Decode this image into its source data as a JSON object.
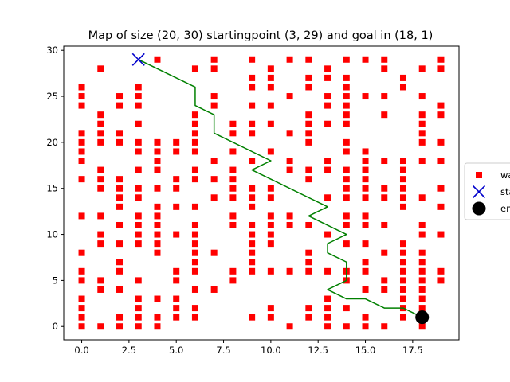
{
  "chart_data": {
    "type": "scatter",
    "title": "Map of size (20, 30) startingpoint (3, 29) and goal in (18, 1)",
    "xlabel": "",
    "ylabel": "",
    "xlim": [
      -0.95,
      19.95
    ],
    "ylim": [
      -1.45,
      30.45
    ],
    "xticks": [
      0,
      2.5,
      5,
      7.5,
      10,
      12.5,
      15,
      17.5
    ],
    "xtick_labels": [
      "0.0",
      "2.5",
      "5.0",
      "7.5",
      "10.0",
      "12.5",
      "15.0",
      "17.5"
    ],
    "yticks": [
      0,
      5,
      10,
      15,
      20,
      25,
      30
    ],
    "ytick_labels": [
      "0",
      "5",
      "10",
      "15",
      "20",
      "25",
      "30"
    ],
    "grid": false,
    "legend_position": "center-right",
    "colors": {
      "wall": "#ff0000",
      "start": "#0000cc",
      "end": "#000000",
      "path": "#008000"
    },
    "series": [
      {
        "name": "wall",
        "marker": "square",
        "points": [
          [
            0,
            0
          ],
          [
            0,
            1
          ],
          [
            0,
            2
          ],
          [
            0,
            3
          ],
          [
            0,
            5
          ],
          [
            0,
            6
          ],
          [
            0,
            8
          ],
          [
            0,
            12
          ],
          [
            0,
            16
          ],
          [
            0,
            18
          ],
          [
            0,
            19
          ],
          [
            0,
            20
          ],
          [
            0,
            21
          ],
          [
            0,
            24
          ],
          [
            0,
            25
          ],
          [
            0,
            26
          ],
          [
            1,
            0
          ],
          [
            1,
            4
          ],
          [
            1,
            5
          ],
          [
            1,
            9
          ],
          [
            1,
            10
          ],
          [
            1,
            12
          ],
          [
            1,
            15
          ],
          [
            1,
            16
          ],
          [
            1,
            17
          ],
          [
            1,
            20
          ],
          [
            1,
            21
          ],
          [
            1,
            22
          ],
          [
            1,
            23
          ],
          [
            1,
            28
          ],
          [
            2,
            0
          ],
          [
            2,
            1
          ],
          [
            2,
            4
          ],
          [
            2,
            6
          ],
          [
            2,
            7
          ],
          [
            2,
            9
          ],
          [
            2,
            11
          ],
          [
            2,
            13
          ],
          [
            2,
            14
          ],
          [
            2,
            15
          ],
          [
            2,
            16
          ],
          [
            2,
            20
          ],
          [
            2,
            21
          ],
          [
            2,
            24
          ],
          [
            2,
            25
          ],
          [
            3,
            0
          ],
          [
            3,
            1
          ],
          [
            3,
            2
          ],
          [
            3,
            3
          ],
          [
            3,
            5
          ],
          [
            3,
            9
          ],
          [
            3,
            10
          ],
          [
            3,
            11
          ],
          [
            3,
            12
          ],
          [
            3,
            14
          ],
          [
            3,
            15
          ],
          [
            3,
            17
          ],
          [
            3,
            19
          ],
          [
            3,
            20
          ],
          [
            3,
            22
          ],
          [
            3,
            24
          ],
          [
            3,
            25
          ],
          [
            3,
            26
          ],
          [
            4,
            0
          ],
          [
            4,
            1
          ],
          [
            4,
            3
          ],
          [
            4,
            8
          ],
          [
            4,
            9
          ],
          [
            4,
            10
          ],
          [
            4,
            11
          ],
          [
            4,
            12
          ],
          [
            4,
            13
          ],
          [
            4,
            15
          ],
          [
            4,
            17
          ],
          [
            4,
            18
          ],
          [
            4,
            19
          ],
          [
            4,
            20
          ],
          [
            4,
            29
          ],
          [
            5,
            1
          ],
          [
            5,
            2
          ],
          [
            5,
            3
          ],
          [
            5,
            5
          ],
          [
            5,
            6
          ],
          [
            5,
            10
          ],
          [
            5,
            13
          ],
          [
            5,
            15
          ],
          [
            5,
            16
          ],
          [
            5,
            19
          ],
          [
            5,
            20
          ],
          [
            6,
            1
          ],
          [
            6,
            2
          ],
          [
            6,
            4
          ],
          [
            6,
            6
          ],
          [
            6,
            7
          ],
          [
            6,
            8
          ],
          [
            6,
            9
          ],
          [
            6,
            10
          ],
          [
            6,
            11
          ],
          [
            6,
            13
          ],
          [
            6,
            16
          ],
          [
            6,
            17
          ],
          [
            6,
            19
          ],
          [
            6,
            20
          ],
          [
            6,
            21
          ],
          [
            6,
            22
          ],
          [
            6,
            23
          ],
          [
            6,
            28
          ],
          [
            7,
            4
          ],
          [
            7,
            8
          ],
          [
            7,
            14
          ],
          [
            7,
            16
          ],
          [
            7,
            18
          ],
          [
            7,
            24
          ],
          [
            7,
            25
          ],
          [
            7,
            28
          ],
          [
            7,
            29
          ],
          [
            8,
            5
          ],
          [
            8,
            6
          ],
          [
            8,
            11
          ],
          [
            8,
            12
          ],
          [
            8,
            14
          ],
          [
            8,
            15
          ],
          [
            8,
            16
          ],
          [
            8,
            17
          ],
          [
            8,
            19
          ],
          [
            8,
            21
          ],
          [
            8,
            22
          ],
          [
            9,
            1
          ],
          [
            9,
            6
          ],
          [
            9,
            7
          ],
          [
            9,
            8
          ],
          [
            9,
            9
          ],
          [
            9,
            10
          ],
          [
            9,
            11
          ],
          [
            9,
            13
          ],
          [
            9,
            14
          ],
          [
            9,
            15
          ],
          [
            9,
            18
          ],
          [
            9,
            21
          ],
          [
            9,
            22
          ],
          [
            9,
            24
          ],
          [
            9,
            26
          ],
          [
            9,
            27
          ],
          [
            9,
            29
          ],
          [
            10,
            1
          ],
          [
            10,
            2
          ],
          [
            10,
            6
          ],
          [
            10,
            9
          ],
          [
            10,
            10
          ],
          [
            10,
            11
          ],
          [
            10,
            12
          ],
          [
            10,
            14
          ],
          [
            10,
            15
          ],
          [
            10,
            19
          ],
          [
            10,
            22
          ],
          [
            10,
            24
          ],
          [
            10,
            26
          ],
          [
            10,
            27
          ],
          [
            10,
            28
          ],
          [
            11,
            0
          ],
          [
            11,
            6
          ],
          [
            11,
            11
          ],
          [
            11,
            12
          ],
          [
            11,
            17
          ],
          [
            11,
            18
          ],
          [
            11,
            21
          ],
          [
            11,
            25
          ],
          [
            11,
            29
          ],
          [
            12,
            1
          ],
          [
            12,
            2
          ],
          [
            12,
            6
          ],
          [
            12,
            7
          ],
          [
            12,
            8
          ],
          [
            12,
            11
          ],
          [
            12,
            16
          ],
          [
            12,
            17
          ],
          [
            12,
            20
          ],
          [
            12,
            21
          ],
          [
            12,
            22
          ],
          [
            12,
            23
          ],
          [
            12,
            26
          ],
          [
            12,
            27
          ],
          [
            12,
            29
          ],
          [
            13,
            0
          ],
          [
            13,
            1
          ],
          [
            13,
            2
          ],
          [
            13,
            3
          ],
          [
            13,
            6
          ],
          [
            13,
            10
          ],
          [
            13,
            14
          ],
          [
            13,
            17
          ],
          [
            13,
            18
          ],
          [
            13,
            22
          ],
          [
            13,
            24
          ],
          [
            13,
            25
          ],
          [
            13,
            27
          ],
          [
            13,
            28
          ],
          [
            14,
            0
          ],
          [
            14,
            2
          ],
          [
            14,
            5
          ],
          [
            14,
            6
          ],
          [
            14,
            9
          ],
          [
            14,
            11
          ],
          [
            14,
            12
          ],
          [
            14,
            14
          ],
          [
            14,
            15
          ],
          [
            14,
            16
          ],
          [
            14,
            17
          ],
          [
            14,
            19
          ],
          [
            14,
            20
          ],
          [
            14,
            22
          ],
          [
            14,
            23
          ],
          [
            14,
            24
          ],
          [
            14,
            25
          ],
          [
            14,
            26
          ],
          [
            14,
            27
          ],
          [
            14,
            29
          ],
          [
            15,
            0
          ],
          [
            15,
            1
          ],
          [
            15,
            4
          ],
          [
            15,
            6
          ],
          [
            15,
            7
          ],
          [
            15,
            9
          ],
          [
            15,
            11
          ],
          [
            15,
            12
          ],
          [
            15,
            14
          ],
          [
            15,
            15
          ],
          [
            15,
            16
          ],
          [
            15,
            17
          ],
          [
            15,
            18
          ],
          [
            15,
            19
          ],
          [
            15,
            25
          ],
          [
            15,
            29
          ],
          [
            16,
            0
          ],
          [
            16,
            4
          ],
          [
            16,
            5
          ],
          [
            16,
            8
          ],
          [
            16,
            11
          ],
          [
            16,
            14
          ],
          [
            16,
            15
          ],
          [
            16,
            18
          ],
          [
            16,
            23
          ],
          [
            16,
            25
          ],
          [
            16,
            28
          ],
          [
            16,
            29
          ],
          [
            17,
            1
          ],
          [
            17,
            2
          ],
          [
            17,
            3
          ],
          [
            17,
            4
          ],
          [
            17,
            5
          ],
          [
            17,
            6
          ],
          [
            17,
            7
          ],
          [
            17,
            8
          ],
          [
            17,
            9
          ],
          [
            17,
            13
          ],
          [
            17,
            14
          ],
          [
            17,
            15
          ],
          [
            17,
            16
          ],
          [
            17,
            17
          ],
          [
            17,
            18
          ],
          [
            17,
            26
          ],
          [
            17,
            27
          ],
          [
            18,
            0
          ],
          [
            18,
            2
          ],
          [
            18,
            3
          ],
          [
            18,
            4
          ],
          [
            18,
            5
          ],
          [
            18,
            6
          ],
          [
            18,
            7
          ],
          [
            18,
            8
          ],
          [
            18,
            10
          ],
          [
            18,
            11
          ],
          [
            18,
            14
          ],
          [
            18,
            18
          ],
          [
            18,
            20
          ],
          [
            18,
            21
          ],
          [
            18,
            22
          ],
          [
            18,
            23
          ],
          [
            18,
            25
          ],
          [
            18,
            28
          ],
          [
            19,
            5
          ],
          [
            19,
            6
          ],
          [
            19,
            10
          ],
          [
            19,
            13
          ],
          [
            19,
            15
          ],
          [
            19,
            18
          ],
          [
            19,
            20
          ],
          [
            19,
            23
          ],
          [
            19,
            24
          ],
          [
            19,
            28
          ],
          [
            19,
            29
          ]
        ]
      },
      {
        "name": "start",
        "marker": "x",
        "points": [
          [
            3,
            29
          ]
        ]
      },
      {
        "name": "end",
        "marker": "circle",
        "points": [
          [
            18,
            1
          ]
        ]
      }
    ],
    "path": [
      [
        3,
        29
      ],
      [
        6,
        26
      ],
      [
        6,
        24
      ],
      [
        7,
        23
      ],
      [
        7,
        21
      ],
      [
        10,
        18
      ],
      [
        9,
        17
      ],
      [
        13,
        13
      ],
      [
        12,
        12
      ],
      [
        14,
        10
      ],
      [
        13,
        9
      ],
      [
        13,
        8
      ],
      [
        14,
        7
      ],
      [
        14,
        5
      ],
      [
        13,
        4
      ],
      [
        14,
        3
      ],
      [
        15,
        3
      ],
      [
        16,
        2
      ],
      [
        17,
        2
      ],
      [
        18,
        1
      ]
    ],
    "legend": [
      {
        "label": "wall",
        "marker": "square"
      },
      {
        "label": "start",
        "marker": "x"
      },
      {
        "label": "end",
        "marker": "circle"
      }
    ]
  }
}
